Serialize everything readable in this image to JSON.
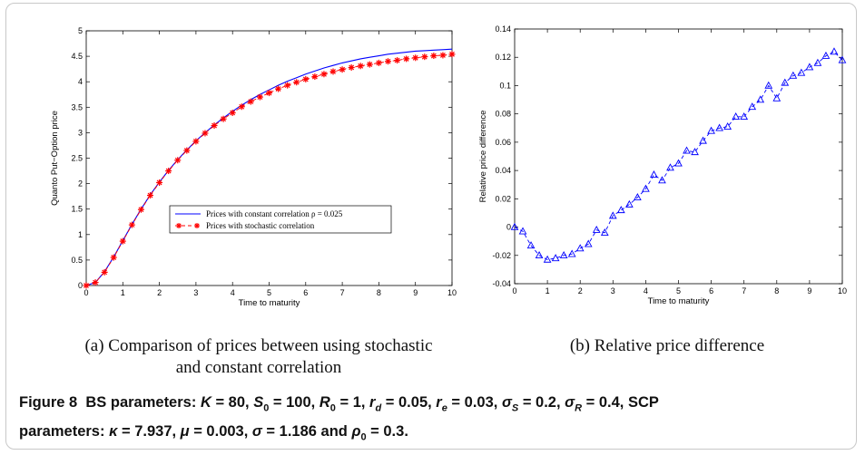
{
  "chart_data": [
    {
      "type": "line",
      "panel": "a",
      "xlabel": "Time to maturity",
      "ylabel": "Quanto Put−Option price",
      "xlim": [
        0,
        10
      ],
      "ylim": [
        0,
        5
      ],
      "xticks": [
        0,
        1,
        2,
        3,
        4,
        5,
        6,
        7,
        8,
        9,
        10
      ],
      "yticks": [
        0,
        0.5,
        1,
        1.5,
        2,
        2.5,
        3,
        3.5,
        4,
        4.5,
        5
      ],
      "legend_placement": "center-right",
      "series": [
        {
          "name": "Prices with constant correlation ρ = 0.025",
          "color": "#0000ff",
          "style": "solid",
          "x": [
            0,
            0.25,
            0.5,
            0.75,
            1,
            1.25,
            1.5,
            1.75,
            2,
            2.25,
            2.5,
            2.75,
            3,
            3.25,
            3.5,
            3.75,
            4,
            4.25,
            4.5,
            4.75,
            5,
            5.25,
            5.5,
            5.75,
            6,
            6.25,
            6.5,
            6.75,
            7,
            7.25,
            7.5,
            7.75,
            8,
            8.25,
            8.5,
            8.75,
            9,
            9.25,
            9.5,
            9.75,
            10
          ],
          "y": [
            0,
            0.06,
            0.27,
            0.56,
            0.88,
            1.2,
            1.5,
            1.78,
            2.03,
            2.26,
            2.47,
            2.66,
            2.84,
            3.0,
            3.15,
            3.29,
            3.42,
            3.54,
            3.65,
            3.75,
            3.84,
            3.93,
            4.01,
            4.08,
            4.15,
            4.21,
            4.27,
            4.32,
            4.37,
            4.41,
            4.45,
            4.48,
            4.51,
            4.54,
            4.56,
            4.58,
            4.6,
            4.61,
            4.62,
            4.63,
            4.64
          ]
        },
        {
          "name": "Prices with stochastic correlation",
          "color": "#ff0000",
          "style": "dashed-star",
          "x": [
            0,
            0.25,
            0.5,
            0.75,
            1,
            1.25,
            1.5,
            1.75,
            2,
            2.25,
            2.5,
            2.75,
            3,
            3.25,
            3.5,
            3.75,
            4,
            4.25,
            4.5,
            4.75,
            5,
            5.25,
            5.5,
            5.75,
            6,
            6.25,
            6.5,
            6.75,
            7,
            7.25,
            7.5,
            7.75,
            8,
            8.25,
            8.5,
            8.75,
            9,
            9.25,
            9.5,
            9.75,
            10
          ],
          "y": [
            0,
            0.06,
            0.26,
            0.55,
            0.87,
            1.19,
            1.49,
            1.77,
            2.02,
            2.25,
            2.46,
            2.65,
            2.83,
            2.99,
            3.14,
            3.27,
            3.39,
            3.51,
            3.61,
            3.7,
            3.78,
            3.86,
            3.93,
            3.99,
            4.05,
            4.1,
            4.15,
            4.2,
            4.24,
            4.28,
            4.31,
            4.34,
            4.37,
            4.4,
            4.42,
            4.45,
            4.47,
            4.49,
            4.51,
            4.52,
            4.54
          ]
        }
      ]
    },
    {
      "type": "line",
      "panel": "b",
      "xlabel": "Time to maturity",
      "ylabel": "Relative price difference",
      "xlim": [
        0,
        10
      ],
      "ylim": [
        -0.04,
        0.14
      ],
      "xticks": [
        0,
        1,
        2,
        3,
        4,
        5,
        6,
        7,
        8,
        9,
        10
      ],
      "yticks": [
        -0.04,
        -0.02,
        0,
        0.02,
        0.04,
        0.06,
        0.08,
        0.1,
        0.12,
        0.14
      ],
      "series": [
        {
          "name": "",
          "color": "#0000ff",
          "style": "dashed-triangle",
          "x": [
            0,
            0.25,
            0.5,
            0.75,
            1,
            1.25,
            1.5,
            1.75,
            2,
            2.25,
            2.5,
            2.75,
            3,
            3.25,
            3.5,
            3.75,
            4,
            4.25,
            4.5,
            4.75,
            5,
            5.25,
            5.5,
            5.75,
            6,
            6.25,
            6.5,
            6.75,
            7,
            7.25,
            7.5,
            7.75,
            8,
            8.25,
            8.5,
            8.75,
            9,
            9.25,
            9.5,
            9.75,
            10
          ],
          "y": [
            0,
            -0.003,
            -0.013,
            -0.02,
            -0.023,
            -0.022,
            -0.02,
            -0.019,
            -0.015,
            -0.012,
            -0.002,
            -0.004,
            0.008,
            0.012,
            0.016,
            0.021,
            0.027,
            0.037,
            0.033,
            0.042,
            0.045,
            0.054,
            0.053,
            0.061,
            0.068,
            0.07,
            0.071,
            0.078,
            0.078,
            0.085,
            0.09,
            0.1,
            0.091,
            0.102,
            0.107,
            0.109,
            0.113,
            0.116,
            0.121,
            0.124,
            0.118
          ]
        }
      ]
    }
  ],
  "subcaptions": {
    "a_line1": "(a) Comparison of prices between using stochastic",
    "a_line2": "and constant correlation",
    "b": "(b) Relative price difference"
  },
  "caption": {
    "figure_label": "Figure 8",
    "bs_prefix": "BS parameters:",
    "p1": " = 80, ",
    "p2": " = 100, ",
    "p3": " = 1, ",
    "p4": " = 0.05, ",
    "p5": " = 0.03, ",
    "p6": " = 0.2, ",
    "p7": " = 0.4, SCP",
    "line2_prefix": "parameters: ",
    "p8": " = 7.937, ",
    "p9": " = 0.003, ",
    "p10": " = 1.186 and ",
    "p11": " = 0.3."
  }
}
